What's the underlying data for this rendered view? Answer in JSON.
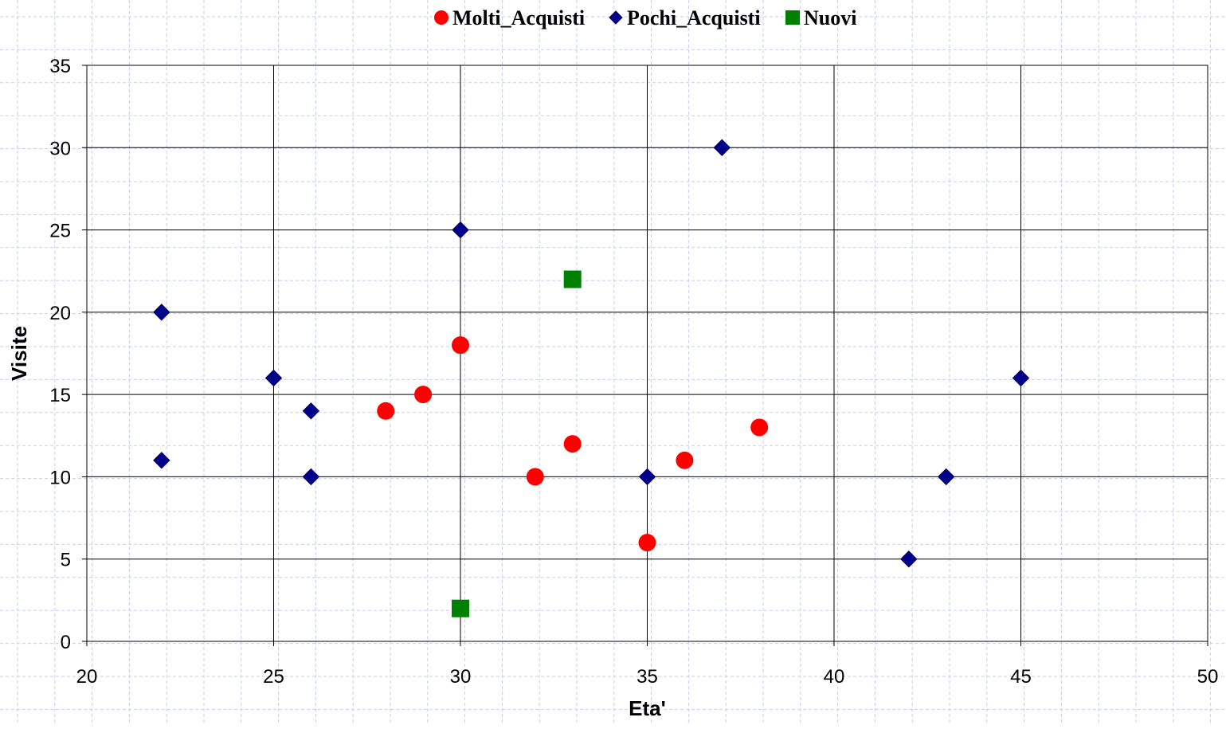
{
  "chart_data": {
    "type": "scatter",
    "xlabel": "Eta'",
    "ylabel": "Visite",
    "xlim": [
      20,
      50
    ],
    "ylim": [
      0,
      35
    ],
    "xticks": [
      20,
      25,
      30,
      35,
      40,
      45,
      50
    ],
    "yticks": [
      0,
      5,
      10,
      15,
      20,
      25,
      30,
      35
    ],
    "grid": true,
    "legend_position": "top",
    "series": [
      {
        "name": "Molti_Acquisti",
        "marker": "circle",
        "color": "#ff0000",
        "points": [
          [
            28,
            14
          ],
          [
            29,
            15
          ],
          [
            30,
            18
          ],
          [
            32,
            10
          ],
          [
            33,
            12
          ],
          [
            35,
            6
          ],
          [
            36,
            11
          ],
          [
            38,
            13
          ]
        ]
      },
      {
        "name": "Pochi_Acquisti",
        "marker": "diamond",
        "color": "#00008b",
        "points": [
          [
            22,
            20
          ],
          [
            22,
            11
          ],
          [
            25,
            16
          ],
          [
            26,
            14
          ],
          [
            26,
            10
          ],
          [
            30,
            25
          ],
          [
            35,
            10
          ],
          [
            37,
            30
          ],
          [
            42,
            5
          ],
          [
            43,
            10
          ],
          [
            45,
            16
          ]
        ]
      },
      {
        "name": "Nuovi",
        "marker": "square",
        "color": "#008000",
        "points": [
          [
            33,
            22
          ],
          [
            30,
            2
          ]
        ]
      }
    ]
  }
}
